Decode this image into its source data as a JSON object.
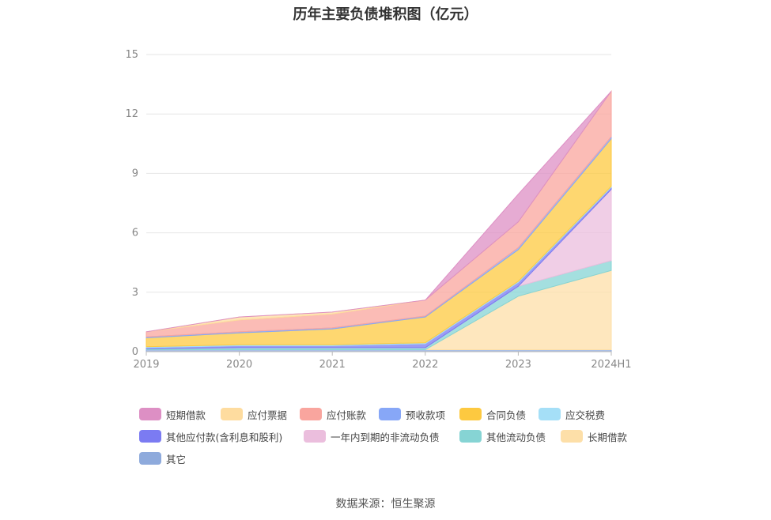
{
  "title": "历年主要负债堆积图（亿元）",
  "source": "数据来源：恒生聚源",
  "chart_data": {
    "type": "area",
    "stacked": true,
    "title": "历年主要负债堆积图（亿元）",
    "categories": [
      "2019",
      "2020",
      "2021",
      "2022",
      "2023",
      "2024H1"
    ],
    "ylim": [
      0,
      15
    ],
    "yticks": [
      "0",
      "3",
      "6",
      "9",
      "12",
      "15"
    ],
    "grid": true,
    "legend_position": "bottom",
    "series": [
      {
        "name": "其它",
        "color": "#8eaadc",
        "values": [
          0.1,
          0.1,
          0.1,
          0.1,
          0.1,
          0.1
        ]
      },
      {
        "name": "长期借款",
        "color": "#fddfa8",
        "values": [
          0,
          0,
          0,
          0,
          2.7,
          4.0
        ]
      },
      {
        "name": "其他流动负债",
        "color": "#86d4d4",
        "values": [
          0.05,
          0.1,
          0.1,
          0.1,
          0.5,
          0.5
        ]
      },
      {
        "name": "一年内到期的非流动负债",
        "color": "#ebbedd",
        "values": [
          0,
          0,
          0,
          0,
          0,
          3.6
        ]
      },
      {
        "name": "其他应付款(含利息和股利)",
        "color": "#7b7bf2",
        "values": [
          0.05,
          0.1,
          0.1,
          0.2,
          0.2,
          0.1
        ]
      },
      {
        "name": "应交税费",
        "color": "#a5dff7",
        "values": [
          0.05,
          0.05,
          0.05,
          0.05,
          0.05,
          0.05
        ]
      },
      {
        "name": "合同负债",
        "color": "#fdc940",
        "values": [
          0.45,
          0.6,
          0.8,
          1.3,
          1.6,
          2.4
        ]
      },
      {
        "name": "预收款项",
        "color": "#87a7f7",
        "values": [
          0.05,
          0.05,
          0.05,
          0.05,
          0.1,
          0.1
        ]
      },
      {
        "name": "应付账款",
        "color": "#f9a59e",
        "values": [
          0.25,
          0.6,
          0.7,
          0.8,
          1.3,
          2.3
        ]
      },
      {
        "name": "应付票据",
        "color": "#fedc9f",
        "values": [
          0,
          0.15,
          0.1,
          0,
          0,
          0
        ]
      },
      {
        "name": "短期借款",
        "color": "#dd8fc4",
        "values": [
          0,
          0,
          0,
          0,
          1.4,
          0
        ]
      }
    ]
  },
  "legend": [
    {
      "name": "短期借款",
      "color": "#dd8fc4"
    },
    {
      "name": "应付票据",
      "color": "#fedc9f"
    },
    {
      "name": "应付账款",
      "color": "#f9a59e"
    },
    {
      "name": "预收款项",
      "color": "#87a7f7"
    },
    {
      "name": "合同负债",
      "color": "#fdc940"
    },
    {
      "name": "应交税费",
      "color": "#a5dff7"
    },
    {
      "name": "其他应付款(含利息和股利)",
      "color": "#7b7bf2"
    },
    {
      "name": "一年内到期的非流动负债",
      "color": "#ebbedd"
    },
    {
      "name": "其他流动负债",
      "color": "#86d4d4"
    },
    {
      "name": "长期借款",
      "color": "#fddfa8"
    },
    {
      "name": "其它",
      "color": "#8eaadc"
    }
  ]
}
